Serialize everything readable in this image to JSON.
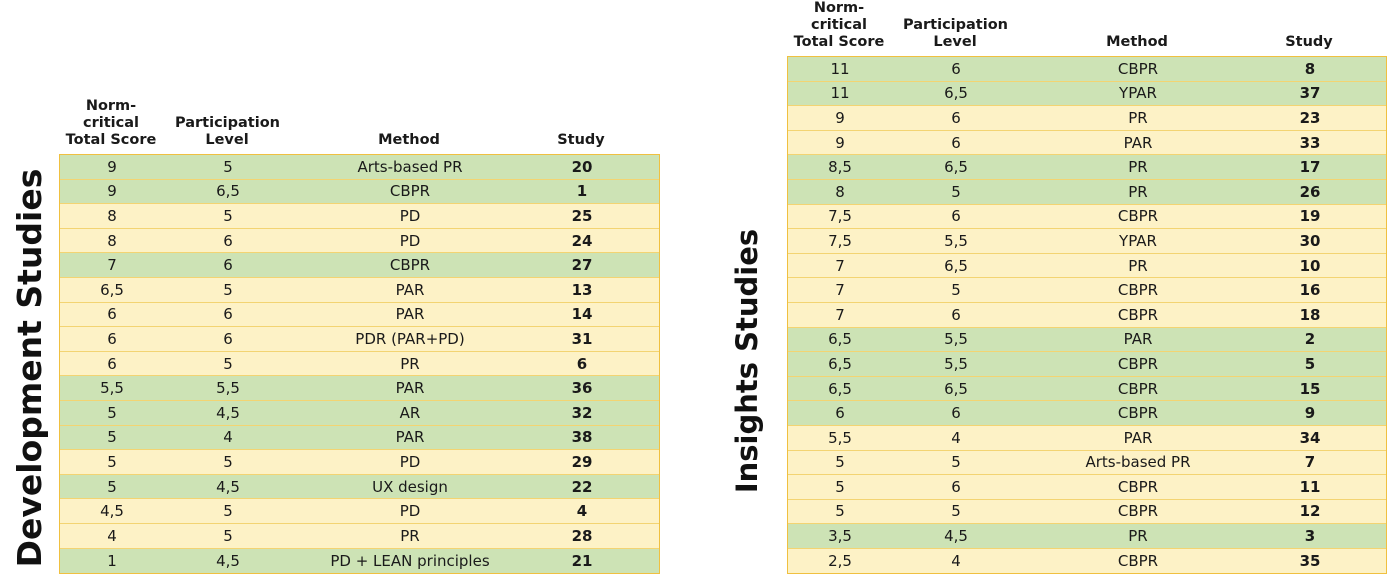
{
  "dev": {
    "title": "Development Studies",
    "headers": {
      "score": "Norm-critical\nTotal Score",
      "participation": "Participation\nLevel",
      "method": "Method",
      "study": "Study"
    },
    "rows": [
      {
        "score": "9",
        "participation": "5",
        "method": "Arts-based PR",
        "study": "20",
        "color": "#cde3b5"
      },
      {
        "score": "9",
        "participation": "6,5",
        "method": "CBPR",
        "study": "1",
        "color": "#cde3b5"
      },
      {
        "score": "8",
        "participation": "5",
        "method": "PD",
        "study": "25",
        "color": "#fdf2c6"
      },
      {
        "score": "8",
        "participation": "6",
        "method": "PD",
        "study": "24",
        "color": "#fdf2c6"
      },
      {
        "score": "7",
        "participation": "6",
        "method": "CBPR",
        "study": "27",
        "color": "#cde3b5"
      },
      {
        "score": "6,5",
        "participation": "5",
        "method": "PAR",
        "study": "13",
        "color": "#fdf2c6"
      },
      {
        "score": "6",
        "participation": "6",
        "method": "PAR",
        "study": "14",
        "color": "#fdf2c6"
      },
      {
        "score": "6",
        "participation": "6",
        "method": "PDR (PAR+PD)",
        "study": "31",
        "color": "#fdf2c6"
      },
      {
        "score": "6",
        "participation": "5",
        "method": "PR",
        "study": "6",
        "color": "#fdf2c6"
      },
      {
        "score": "5,5",
        "participation": "5,5",
        "method": "PAR",
        "study": "36",
        "color": "#cde3b5"
      },
      {
        "score": "5",
        "participation": "4,5",
        "method": "AR",
        "study": "32",
        "color": "#cde3b5"
      },
      {
        "score": "5",
        "participation": "4",
        "method": "PAR",
        "study": "38",
        "color": "#cde3b5"
      },
      {
        "score": "5",
        "participation": "5",
        "method": "PD",
        "study": "29",
        "color": "#fdf2c6"
      },
      {
        "score": "5",
        "participation": "4,5",
        "method": "UX design",
        "study": "22",
        "color": "#cde3b5"
      },
      {
        "score": "4,5",
        "participation": "5",
        "method": "PD",
        "study": "4",
        "color": "#fdf2c6"
      },
      {
        "score": "4",
        "participation": "5",
        "method": "PR",
        "study": "28",
        "color": "#fdf2c6"
      },
      {
        "score": "1",
        "participation": "4,5",
        "method": "PD + LEAN principles",
        "study": "21",
        "color": "#cde3b5"
      }
    ]
  },
  "ins": {
    "title": "Insights Studies",
    "headers": {
      "score": "Norm-critical\nTotal Score",
      "participation": "Participation\nLevel",
      "method": "Method",
      "study": "Study"
    },
    "rows": [
      {
        "score": "11",
        "participation": "6",
        "method": "CBPR",
        "study": "8",
        "color": "#cde3b5"
      },
      {
        "score": "11",
        "participation": "6,5",
        "method": "YPAR",
        "study": "37",
        "color": "#cde3b5"
      },
      {
        "score": "9",
        "participation": "6",
        "method": "PR",
        "study": "23",
        "color": "#fdf2c6"
      },
      {
        "score": "9",
        "participation": "6",
        "method": "PAR",
        "study": "33",
        "color": "#fdf2c6"
      },
      {
        "score": "8,5",
        "participation": "6,5",
        "method": "PR",
        "study": "17",
        "color": "#cde3b5"
      },
      {
        "score": "8",
        "participation": "5",
        "method": "PR",
        "study": "26",
        "color": "#cde3b5"
      },
      {
        "score": "7,5",
        "participation": "6",
        "method": "CBPR",
        "study": "19",
        "color": "#fdf2c6"
      },
      {
        "score": "7,5",
        "participation": "5,5",
        "method": "YPAR",
        "study": "30",
        "color": "#fdf2c6"
      },
      {
        "score": "7",
        "participation": "6,5",
        "method": "PR",
        "study": "10",
        "color": "#fdf2c6"
      },
      {
        "score": "7",
        "participation": "5",
        "method": "CBPR",
        "study": "16",
        "color": "#fdf2c6"
      },
      {
        "score": "7",
        "participation": "6",
        "method": "CBPR",
        "study": "18",
        "color": "#fdf2c6"
      },
      {
        "score": "6,5",
        "participation": "5,5",
        "method": "PAR",
        "study": "2",
        "color": "#cde3b5"
      },
      {
        "score": "6,5",
        "participation": "5,5",
        "method": "CBPR",
        "study": "5",
        "color": "#cde3b5"
      },
      {
        "score": "6,5",
        "participation": "6,5",
        "method": "CBPR",
        "study": "15",
        "color": "#cde3b5"
      },
      {
        "score": "6",
        "participation": "6",
        "method": "CBPR",
        "study": "9",
        "color": "#cde3b5"
      },
      {
        "score": "5,5",
        "participation": "4",
        "method": "PAR",
        "study": "34",
        "color": "#fdf2c6"
      },
      {
        "score": "5",
        "participation": "5",
        "method": "Arts-based PR",
        "study": "7",
        "color": "#fdf2c6"
      },
      {
        "score": "5",
        "participation": "6",
        "method": "CBPR",
        "study": "11",
        "color": "#fdf2c6"
      },
      {
        "score": "5",
        "participation": "5",
        "method": "CBPR",
        "study": "12",
        "color": "#fdf2c6"
      },
      {
        "score": "3,5",
        "participation": "4,5",
        "method": "PR",
        "study": "3",
        "color": "#cde3b5"
      },
      {
        "score": "2,5",
        "participation": "4",
        "method": "CBPR",
        "study": "35",
        "color": "#fdf2c6"
      }
    ]
  }
}
